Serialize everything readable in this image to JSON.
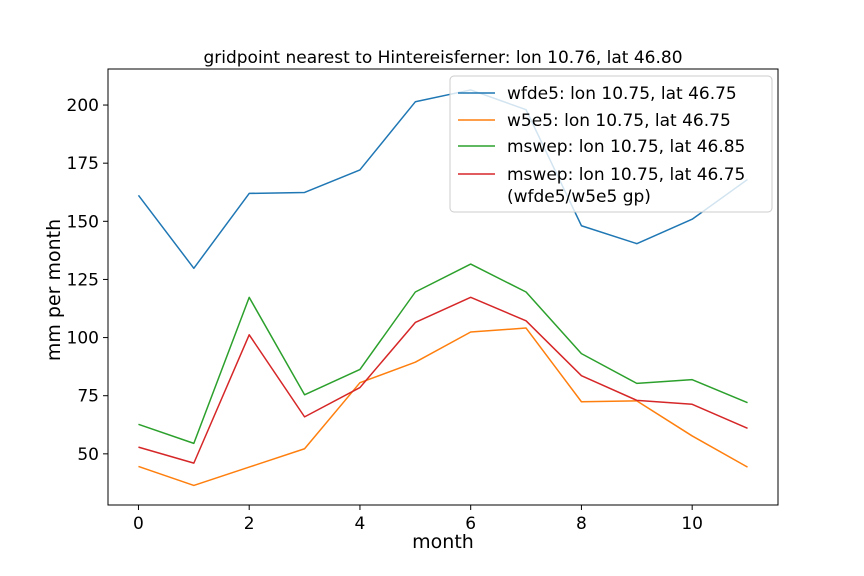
{
  "chart_data": {
    "type": "line",
    "title": "gridpoint nearest to Hintereisferner: lon 10.76, lat 46.80",
    "xlabel": "month",
    "ylabel": "mm per month",
    "xlim": [
      -0.55,
      11.55
    ],
    "ylim": [
      28.0,
      215.5
    ],
    "xticks": [
      0,
      2,
      4,
      6,
      8,
      10
    ],
    "yticks": [
      50,
      75,
      100,
      125,
      150,
      175,
      200
    ],
    "grid": false,
    "legend_position": "top-right",
    "x": [
      0,
      1,
      2,
      3,
      4,
      5,
      6,
      7,
      8,
      9,
      10,
      11
    ],
    "series": [
      {
        "name": "wfde5: lon 10.75, lat 46.75",
        "color": "#1f77b4",
        "values": [
          161.2,
          129.8,
          162.0,
          162.4,
          172.1,
          201.4,
          206.5,
          198.0,
          148.1,
          140.4,
          150.9,
          168.0
        ]
      },
      {
        "name": "w5e5: lon 10.75, lat 46.75",
        "color": "#ff7f0e",
        "values": [
          44.6,
          36.4,
          44.3,
          52.2,
          80.6,
          89.4,
          102.4,
          104.1,
          72.4,
          72.8,
          57.7,
          44.3
        ]
      },
      {
        "name": "mswep: lon 10.75, lat 46.85",
        "color": "#2ca02c",
        "values": [
          62.7,
          54.5,
          117.3,
          75.4,
          86.3,
          119.6,
          131.6,
          119.6,
          93.1,
          80.3,
          81.9,
          72.0
        ]
      },
      {
        "name": "mswep: lon 10.75, lat 46.75\n(wfde5/w5e5 gp)",
        "name_lines": [
          "mswep: lon 10.75, lat 46.75",
          "(wfde5/w5e5 gp)"
        ],
        "color": "#d62728",
        "values": [
          52.9,
          46.0,
          101.2,
          65.9,
          78.5,
          106.5,
          117.3,
          107.2,
          83.6,
          73.0,
          71.3,
          61.0
        ]
      }
    ]
  }
}
